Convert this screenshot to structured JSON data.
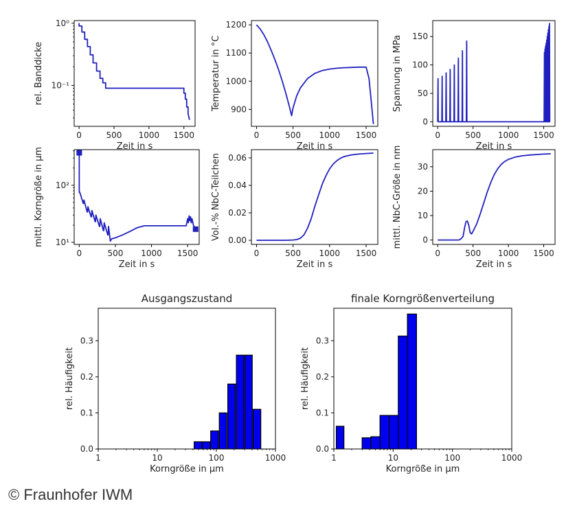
{
  "copyright": "© Fraunhofer IWM",
  "chart_data": [
    {
      "id": "banddicke",
      "type": "line",
      "xlabel": "Zeit in s",
      "ylabel": "rel. Banddicke",
      "yscale": "log",
      "xlim": [
        -70,
        1660
      ],
      "ylim": [
        0.022,
        1.1
      ],
      "xticks": [
        0,
        500,
        1000,
        1500
      ],
      "xticklabels": [
        "0",
        "500",
        "1000",
        "1500"
      ],
      "yticks": [
        0.1,
        1
      ],
      "yticklabels": [
        "10⁻¹",
        "10⁰"
      ],
      "color": "#1f1fbf",
      "x": [
        0,
        0,
        40,
        40,
        80,
        80,
        120,
        120,
        160,
        160,
        200,
        200,
        250,
        250,
        300,
        300,
        340,
        340,
        380,
        380,
        430,
        430,
        1500,
        1500,
        1520,
        1520,
        1540,
        1540,
        1560,
        1560,
        1580
      ],
      "y": [
        1.0,
        0.9,
        0.9,
        0.72,
        0.72,
        0.55,
        0.55,
        0.42,
        0.42,
        0.31,
        0.31,
        0.23,
        0.23,
        0.17,
        0.17,
        0.13,
        0.13,
        0.11,
        0.11,
        0.09,
        0.09,
        0.09,
        0.09,
        0.075,
        0.075,
        0.06,
        0.06,
        0.045,
        0.045,
        0.035,
        0.028
      ]
    },
    {
      "id": "temperatur",
      "type": "line",
      "xlabel": "Zeit in s",
      "ylabel": "Temperatur in °C",
      "xlim": [
        -70,
        1660
      ],
      "ylim": [
        840,
        1215
      ],
      "xticks": [
        0,
        500,
        1000,
        1500
      ],
      "xticklabels": [
        "0",
        "500",
        "1000",
        "1500"
      ],
      "yticks": [
        900,
        1000,
        1100,
        1200
      ],
      "yticklabels": [
        "900",
        "1000",
        "1100",
        "1200"
      ],
      "color": "#1f1fbf",
      "x": [
        0,
        50,
        100,
        150,
        200,
        250,
        300,
        350,
        400,
        450,
        480,
        500,
        550,
        600,
        700,
        800,
        900,
        1000,
        1100,
        1200,
        1300,
        1400,
        1500,
        1540,
        1570,
        1600
      ],
      "y": [
        1200,
        1185,
        1165,
        1140,
        1110,
        1078,
        1042,
        1002,
        958,
        910,
        878,
        905,
        948,
        976,
        1010,
        1028,
        1038,
        1043,
        1046,
        1048,
        1049,
        1050,
        1050,
        1010,
        930,
        848
      ]
    },
    {
      "id": "spannung",
      "type": "line",
      "xlabel": "Zeit in s",
      "ylabel": "Spannung in MPa",
      "xlim": [
        -70,
        1660
      ],
      "ylim": [
        -8,
        178
      ],
      "xticks": [
        0,
        500,
        1000,
        1500
      ],
      "xticklabels": [
        "0",
        "500",
        "1000",
        "1500"
      ],
      "yticks": [
        0,
        50,
        100,
        150
      ],
      "yticklabels": [
        "0",
        "50",
        "100",
        "150"
      ],
      "color": "#1f1fbf",
      "x": [
        0,
        5,
        8,
        58,
        63,
        66,
        115,
        120,
        123,
        172,
        177,
        180,
        230,
        235,
        238,
        288,
        293,
        296,
        345,
        350,
        353,
        405,
        410,
        413,
        1505,
        1510,
        1513,
        1518,
        1521,
        1526,
        1529,
        1534,
        1537,
        1542,
        1545,
        1550,
        1553,
        1558,
        1561,
        1566,
        1569,
        1574,
        1577,
        1582,
        1585,
        1590
      ],
      "y": [
        0,
        76,
        0,
        0,
        80,
        0,
        0,
        86,
        0,
        0,
        92,
        0,
        0,
        100,
        0,
        0,
        112,
        0,
        0,
        125,
        0,
        0,
        142,
        0,
        0,
        122,
        0,
        128,
        0,
        133,
        0,
        138,
        0,
        144,
        0,
        150,
        0,
        156,
        0,
        162,
        0,
        168,
        0,
        173,
        0,
        0
      ]
    },
    {
      "id": "korngroesse",
      "type": "line",
      "xlabel": "Zeit in s",
      "ylabel": "mittl. Korngröße in µm",
      "yscale": "log",
      "xlim": [
        -70,
        1660
      ],
      "ylim": [
        9.2,
        420
      ],
      "xticks": [
        0,
        500,
        1000,
        1500
      ],
      "xticklabels": [
        "0",
        "500",
        "1000",
        "1500"
      ],
      "yticks": [
        10,
        100
      ],
      "yticklabels": [
        "10¹",
        "10²"
      ],
      "color": "#1f1fbf",
      "x": [
        0,
        0,
        8,
        55,
        60,
        65,
        110,
        115,
        120,
        165,
        170,
        175,
        220,
        225,
        230,
        280,
        285,
        290,
        335,
        340,
        345,
        395,
        400,
        405,
        430,
        450,
        500,
        600,
        700,
        800,
        900,
        1000,
        1100,
        1200,
        1300,
        1400,
        1480,
        1500,
        1510,
        1520,
        1530,
        1540,
        1550,
        1560,
        1580,
        1600,
        1620
      ],
      "y": [
        370,
        75,
        75,
        48,
        48,
        55,
        34,
        34,
        42,
        28,
        28,
        36,
        23,
        23,
        30,
        19,
        19,
        26,
        16,
        16,
        22,
        13.5,
        13.5,
        19,
        10.5,
        11.5,
        12,
        13.5,
        15.5,
        18,
        19.5,
        19.5,
        19.5,
        19.5,
        19.5,
        19.5,
        19.5,
        26,
        22,
        29,
        24,
        28,
        22,
        26,
        20,
        18,
        17
      ],
      "markers": [
        {
          "x": 0,
          "y": 370
        },
        {
          "x": 1610,
          "y": 17
        }
      ]
    },
    {
      "id": "nbc_teilchen",
      "type": "line",
      "xlabel": "Zeit in s",
      "ylabel": "Vol.-% NbC-Teilchen",
      "xlim": [
        -70,
        1660
      ],
      "ylim": [
        -0.003,
        0.066
      ],
      "xticks": [
        0,
        500,
        1000,
        1500
      ],
      "xticklabels": [
        "0",
        "500",
        "1000",
        "1500"
      ],
      "yticks": [
        0,
        0.02,
        0.04,
        0.06
      ],
      "yticklabels": [
        "0.00",
        "0.02",
        "0.04",
        "0.06"
      ],
      "color": "#1f1fbf",
      "x": [
        0,
        100,
        200,
        300,
        400,
        500,
        550,
        600,
        650,
        700,
        750,
        800,
        850,
        900,
        950,
        1000,
        1050,
        1100,
        1150,
        1200,
        1300,
        1400,
        1500,
        1600
      ],
      "y": [
        0,
        0,
        0,
        0,
        0,
        0.0002,
        0.0005,
        0.0015,
        0.004,
        0.009,
        0.016,
        0.025,
        0.033,
        0.041,
        0.047,
        0.052,
        0.0555,
        0.058,
        0.0598,
        0.061,
        0.0622,
        0.0628,
        0.0632,
        0.0635
      ]
    },
    {
      "id": "nbc_groesse",
      "type": "line",
      "xlabel": "Zeit in s",
      "ylabel": "mittl. NbC-Größe in nm",
      "xlim": [
        -70,
        1660
      ],
      "ylim": [
        -1.8,
        37
      ],
      "xticks": [
        0,
        500,
        1000,
        1500
      ],
      "xticklabels": [
        "0",
        "500",
        "1000",
        "1500"
      ],
      "yticks": [
        0,
        10,
        20,
        30
      ],
      "yticklabels": [
        "0",
        "10",
        "20",
        "30"
      ],
      "color": "#1f1fbf",
      "x": [
        0,
        100,
        200,
        300,
        330,
        360,
        380,
        400,
        420,
        440,
        460,
        480,
        500,
        550,
        600,
        650,
        700,
        750,
        800,
        850,
        900,
        950,
        1000,
        1100,
        1200,
        1300,
        1400,
        1500,
        1600
      ],
      "y": [
        0,
        0,
        0,
        0,
        0.5,
        1.5,
        5.0,
        7.5,
        7.8,
        6.0,
        3.0,
        2.5,
        3.5,
        6.5,
        10.5,
        15.0,
        19.5,
        23.5,
        26.8,
        29.2,
        31.0,
        32.2,
        33.0,
        34.0,
        34.5,
        34.8,
        35.0,
        35.2,
        35.3
      ]
    },
    {
      "id": "ausgangszustand",
      "type": "bar",
      "title": "Ausgangszustand",
      "xlabel": "Korngröße in µm",
      "ylabel": "rel. Häufigkeit",
      "xscale": "log",
      "xlim": [
        1,
        1000
      ],
      "ylim": [
        0,
        0.39
      ],
      "xticks": [
        1,
        10,
        100,
        1000
      ],
      "xticklabels": [
        "1",
        "10",
        "100",
        "1000"
      ],
      "yticks": [
        0,
        0.1,
        0.2,
        0.3
      ],
      "yticklabels": [
        "0.0",
        "0.1",
        "0.2",
        "0.3"
      ],
      "color": "#0000ee",
      "bins": [
        [
          42,
          57
        ],
        [
          58,
          78
        ],
        [
          80,
          108
        ],
        [
          112,
          150
        ],
        [
          156,
          210
        ],
        [
          218,
          292
        ],
        [
          302,
          405
        ],
        [
          418,
          565
        ],
        [
          585,
          780
        ]
      ],
      "values": [
        0.02,
        0.02,
        0.05,
        0.1,
        0.18,
        0.26,
        0.26,
        0.11,
        0
      ]
    },
    {
      "id": "finale_verteilung",
      "type": "bar",
      "title": "finale Korngrößenverteilung",
      "xlabel": "Korngröße in µm",
      "ylabel": "rel. Häufigkeit",
      "xscale": "log",
      "xlim": [
        1,
        1000
      ],
      "ylim": [
        0,
        0.39
      ],
      "xticks": [
        1,
        10,
        100,
        1000
      ],
      "xticklabels": [
        "1",
        "10",
        "100",
        "1000"
      ],
      "yticks": [
        0,
        0.1,
        0.2,
        0.3
      ],
      "yticklabels": [
        "0.0",
        "0.1",
        "0.2",
        "0.3"
      ],
      "color": "#0000ee",
      "bins": [
        [
          1.1,
          1.48
        ],
        [
          2.1,
          3.0
        ],
        [
          3.0,
          4.2
        ],
        [
          4.2,
          6.0
        ],
        [
          6.0,
          8.6
        ],
        [
          8.6,
          12.2
        ],
        [
          12.2,
          17.4
        ],
        [
          17.4,
          24.8
        ]
      ],
      "values": [
        0.063,
        0.0,
        0.031,
        0.034,
        0.093,
        0.093,
        0.313,
        0.374
      ]
    }
  ]
}
